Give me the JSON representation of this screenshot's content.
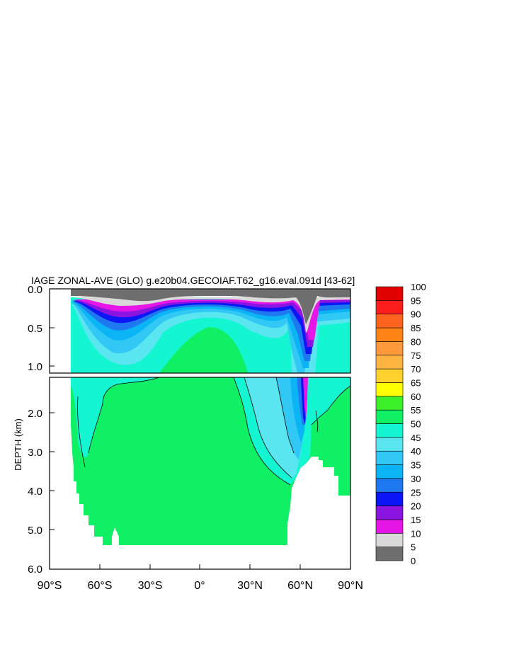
{
  "chart_data": {
    "type": "heatmap",
    "title": "IAGE ZONAL-AVE (GLO) g.e20b04.GECOIAF.T62_g16.eval.091d [43-62]",
    "ylabel": "DEPTH (km)",
    "xlabel": "",
    "x_ticks": [
      "90°S",
      "60°S",
      "30°S",
      "0°",
      "30°N",
      "60°N",
      "90°N"
    ],
    "x_tick_values": [
      -90,
      -60,
      -30,
      0,
      30,
      60,
      90
    ],
    "y_ticks_upper": [
      "0.0",
      "0.5",
      "1.0"
    ],
    "y_tick_values_upper": [
      0.0,
      0.5,
      1.0
    ],
    "y_ticks_lower": [
      "2.0",
      "3.0",
      "4.0",
      "5.0",
      "6.0"
    ],
    "y_tick_values_lower": [
      2.0,
      3.0,
      4.0,
      5.0,
      6.0
    ],
    "ylim_upper": [
      0.0,
      1.1
    ],
    "ylim_lower": [
      1.0,
      6.0
    ],
    "xlim": [
      -90,
      90
    ],
    "colorbar_levels": [
      "0",
      "5",
      "10",
      "15",
      "20",
      "25",
      "30",
      "35",
      "40",
      "45",
      "50",
      "55",
      "60",
      "65",
      "70",
      "75",
      "80",
      "85",
      "90",
      "95",
      "100"
    ],
    "colorbar_colors": [
      "#6e6e6e",
      "#d9d9d9",
      "#e617e6",
      "#8c14e0",
      "#0a16f5",
      "#1e78f0",
      "#0ab4f5",
      "#32c8f5",
      "#5ae6f0",
      "#14f5d2",
      "#0ff064",
      "#3cf02a",
      "#ffff00",
      "#ffd22d",
      "#ffb441",
      "#ff9a3c",
      "#ff8214",
      "#ff641e",
      "#ff1e1e",
      "#e10000"
    ],
    "regions": {
      "land": "#ffffff",
      "ocean_floor": "#ffffff",
      "surface_age": "0-5",
      "deep_pacific_age": "50-55",
      "abyssal_southern_age": "50-55"
    }
  }
}
